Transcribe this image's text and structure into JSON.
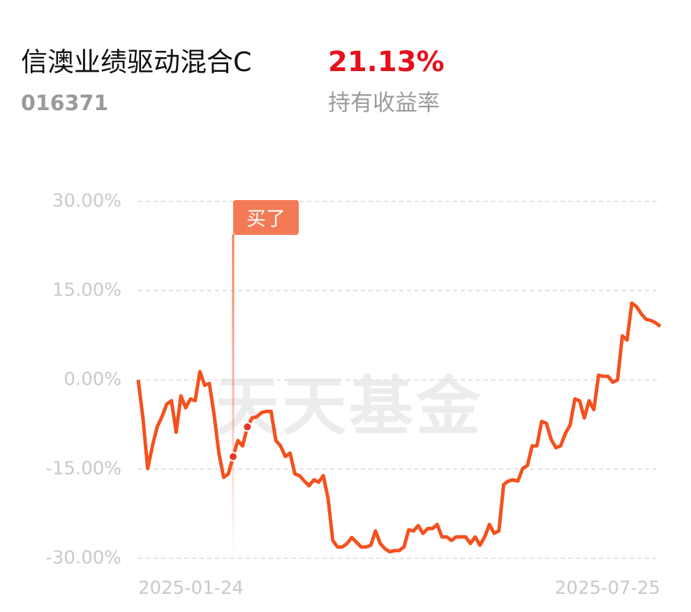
{
  "header": {
    "title": "信澳业绩驱动混合C",
    "code": "016371",
    "return": "21.13%",
    "return_label": "持有收益率"
  },
  "chart_data": {
    "type": "line",
    "watermark": "天天基金",
    "annotation": "买了",
    "categories": [
      "2025-01-24",
      null,
      null,
      null,
      null,
      null,
      null,
      null,
      null,
      null,
      null,
      null,
      null,
      null,
      null,
      null,
      null,
      null,
      null,
      null,
      null,
      null,
      null,
      null,
      null,
      null,
      null,
      null,
      null,
      null,
      null,
      null,
      null,
      null,
      null,
      null,
      null,
      null,
      null,
      null,
      null,
      null,
      null,
      null,
      null,
      null,
      null,
      null,
      null,
      null,
      null,
      null,
      null,
      null,
      null,
      null,
      null,
      null,
      null,
      null,
      null,
      null,
      null,
      null,
      null,
      null,
      null,
      null,
      null,
      null,
      null,
      null,
      null,
      null,
      null,
      null,
      null,
      null,
      null,
      null,
      null,
      null,
      null,
      null,
      null,
      null,
      null,
      null,
      null,
      null,
      null,
      null,
      null,
      null,
      null,
      null,
      null,
      null,
      null,
      null,
      null,
      null,
      null,
      null,
      null,
      null,
      null,
      null,
      null,
      null,
      "2025-07-25"
    ],
    "values": [
      0,
      -6.4,
      -14.9,
      -11.1,
      -7.9,
      -6.2,
      -4.1,
      -3.5,
      -8.8,
      -2.7,
      -4.7,
      -3.2,
      -3.5,
      1.4,
      -0.9,
      -0.6,
      -5.9,
      -12.3,
      -16.4,
      -15.8,
      -12.9,
      -10.2,
      -11.1,
      -7.9,
      -6.4,
      -6.2,
      -5.5,
      -5.3,
      -5.3,
      -10.2,
      -11.1,
      -12.9,
      -12.3,
      -15.8,
      -16.1,
      -17.0,
      -17.8,
      -16.8,
      -17.2,
      -16.1,
      -19.9,
      -27.0,
      -28.1,
      -28.1,
      -27.5,
      -26.5,
      -27.3,
      -28.1,
      -28.1,
      -27.8,
      -25.4,
      -27.5,
      -28.4,
      -28.9,
      -28.7,
      -28.7,
      -28.1,
      -25.2,
      -25.4,
      -24.5,
      -25.8,
      -25.0,
      -25.0,
      -24.3,
      -26.4,
      -26.4,
      -27.0,
      -26.4,
      -26.4,
      -26.4,
      -27.5,
      -26.4,
      -27.8,
      -26.4,
      -24.3,
      -25.8,
      -25.4,
      -17.6,
      -17.0,
      -16.8,
      -17.0,
      -14.9,
      -14.4,
      -11.1,
      -11.1,
      -7.0,
      -7.3,
      -10.0,
      -11.4,
      -11.1,
      -9.0,
      -7.6,
      -3.2,
      -3.5,
      -6.4,
      -3.5,
      -5.0,
      0.8,
      0.6,
      0.6,
      -0.4,
      0,
      7.4,
      6.7,
      12.9,
      12.3,
      11.1,
      10.2,
      10.0,
      9.6,
      9.0
    ],
    "color": "#f4511e",
    "ylim": [
      -30,
      30
    ],
    "yticks": [
      {
        "value": -30,
        "label": "-30.00%"
      },
      {
        "value": -15,
        "label": "-15.00%"
      },
      {
        "value": 0,
        "label": "0.00%"
      },
      {
        "value": 15,
        "label": "15.00%"
      },
      {
        "value": 30,
        "label": "30.00%"
      }
    ],
    "grid": true
  }
}
